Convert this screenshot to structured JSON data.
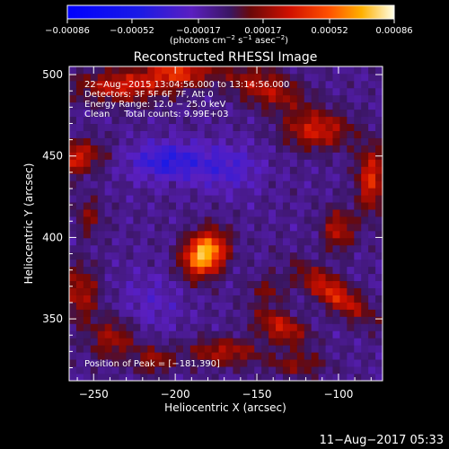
{
  "chart_data": {
    "type": "heatmap",
    "title": "Reconstructed RHESSI Image",
    "xlabel": "Heliocentric X (arcsec)",
    "ylabel": "Heliocentric Y (arcsec)",
    "xlim": [
      -265,
      -73
    ],
    "ylim": [
      312,
      505
    ],
    "x_ticks": [
      {
        "v": -250,
        "label": "−250"
      },
      {
        "v": -200,
        "label": "−200"
      },
      {
        "v": -150,
        "label": "−150"
      },
      {
        "v": -100,
        "label": "−100"
      }
    ],
    "y_ticks": [
      {
        "v": 350,
        "label": "350"
      },
      {
        "v": 400,
        "label": "400"
      },
      {
        "v": 450,
        "label": "450"
      },
      {
        "v": 500,
        "label": "500"
      }
    ],
    "colorbar": {
      "min": -0.00086,
      "max": 0.00086,
      "unit_parts": [
        "(photons cm",
        "−2",
        " s",
        "−1",
        " asec",
        "−2",
        ")"
      ],
      "ticks": [
        {
          "v": -0.00086,
          "label": "−0.00086"
        },
        {
          "v": -0.00052,
          "label": "−0.00052"
        },
        {
          "v": -0.00017,
          "label": "−0.00017"
        },
        {
          "v": 0.00017,
          "label": "0.00017"
        },
        {
          "v": 0.00052,
          "label": "0.00052"
        },
        {
          "v": 0.00086,
          "label": "0.00086"
        }
      ]
    },
    "annotations": [
      "22−Aug−2015 13:04:56.000 to 13:14:56.000",
      "Detectors: 3F 5F 6F 7F, Att 0",
      "Energy Range: 12.0 − 25.0 keV",
      "Clean     Total counts: 9.99E+03"
    ],
    "peak_label": "Position of Peak = [−181,390]",
    "peak": {
      "x": -181,
      "y": 390
    },
    "footer_timestamp": "11−Aug−2017 05:33",
    "sources": [
      {
        "x": -182,
        "y": 390,
        "amp": 0.00086,
        "sx": 10,
        "sy": 8,
        "angle": 50
      },
      {
        "x": -262,
        "y": 449,
        "amp": 0.00042,
        "sx": 12,
        "sy": 7,
        "angle": 10
      },
      {
        "x": -232,
        "y": 493,
        "amp": 0.0004,
        "sx": 20,
        "sy": 7,
        "angle": 0
      },
      {
        "x": -198,
        "y": 502,
        "amp": 0.00045,
        "sx": 14,
        "sy": 6,
        "angle": 0
      },
      {
        "x": -145,
        "y": 492,
        "amp": 0.00034,
        "sx": 18,
        "sy": 8,
        "angle": -20
      },
      {
        "x": -113,
        "y": 466,
        "amp": 0.0004,
        "sx": 14,
        "sy": 8,
        "angle": 0
      },
      {
        "x": -80,
        "y": 436,
        "amp": 0.00045,
        "sx": 6,
        "sy": 14,
        "angle": 0
      },
      {
        "x": -100,
        "y": 405,
        "amp": 0.00034,
        "sx": 7,
        "sy": 9,
        "angle": 0
      },
      {
        "x": -103,
        "y": 366,
        "amp": 0.00046,
        "sx": 18,
        "sy": 6,
        "angle": -35
      },
      {
        "x": -135,
        "y": 345,
        "amp": 0.0004,
        "sx": 12,
        "sy": 6,
        "angle": -25
      },
      {
        "x": -170,
        "y": 330,
        "amp": 0.00032,
        "sx": 16,
        "sy": 6,
        "angle": 0
      },
      {
        "x": -258,
        "y": 366,
        "amp": 0.00032,
        "sx": 8,
        "sy": 12,
        "angle": 0
      },
      {
        "x": -238,
        "y": 338,
        "amp": 0.0003,
        "sx": 10,
        "sy": 9,
        "angle": 0
      },
      {
        "x": -213,
        "y": 325,
        "amp": 0.00028,
        "sx": 8,
        "sy": 6,
        "angle": 0
      },
      {
        "x": -253,
        "y": 413,
        "amp": 0.00022,
        "sx": 6,
        "sy": 8,
        "angle": 0
      },
      {
        "x": -125,
        "y": 322,
        "amp": 0.00024,
        "sx": 12,
        "sy": 5,
        "angle": 0
      },
      {
        "x": -143,
        "y": 368,
        "amp": 0.0002,
        "sx": 8,
        "sy": 6,
        "angle": 0
      },
      {
        "x": -205,
        "y": 447,
        "amp": -0.00032,
        "sx": 16,
        "sy": 8,
        "angle": 0
      },
      {
        "x": -168,
        "y": 443,
        "amp": -0.0002,
        "sx": 14,
        "sy": 10,
        "angle": 0
      },
      {
        "x": -215,
        "y": 360,
        "amp": -0.00012,
        "sx": 14,
        "sy": 14,
        "angle": 0
      }
    ]
  }
}
